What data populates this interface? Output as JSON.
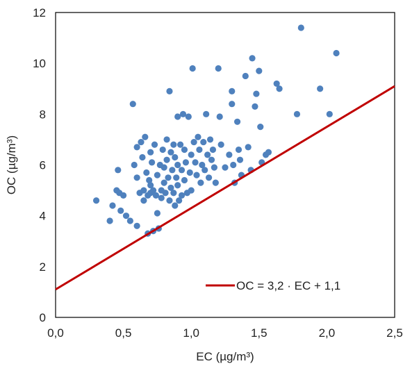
{
  "chart_data": {
    "type": "scatter",
    "xlabel": "EC (µg/m³)",
    "ylabel": "OC (µg/m³)",
    "xlim": [
      0,
      2.5
    ],
    "ylim": [
      0,
      12
    ],
    "x_ticks": [
      "0,0",
      "0,5",
      "1,0",
      "1,5",
      "2,0",
      "2,5"
    ],
    "y_ticks": [
      "0",
      "2",
      "4",
      "6",
      "8",
      "10",
      "12"
    ],
    "grid": false,
    "legend_position": "bottom-right",
    "point_color": "#4f81bd",
    "line_color": "#c00000",
    "line": {
      "label": "OC = 3,2 · EC + 1,1",
      "slope": 3.2,
      "intercept": 1.1
    },
    "points": [
      [
        0.3,
        4.6
      ],
      [
        0.4,
        3.8
      ],
      [
        0.42,
        4.4
      ],
      [
        0.45,
        5.0
      ],
      [
        0.47,
        4.9
      ],
      [
        0.46,
        5.8
      ],
      [
        0.48,
        4.2
      ],
      [
        0.5,
        4.8
      ],
      [
        0.52,
        4.0
      ],
      [
        0.55,
        3.8
      ],
      [
        0.57,
        8.4
      ],
      [
        0.58,
        6.0
      ],
      [
        0.6,
        6.7
      ],
      [
        0.6,
        5.5
      ],
      [
        0.6,
        3.6
      ],
      [
        0.62,
        4.9
      ],
      [
        0.63,
        6.9
      ],
      [
        0.64,
        6.3
      ],
      [
        0.65,
        5.0
      ],
      [
        0.65,
        4.6
      ],
      [
        0.66,
        7.1
      ],
      [
        0.67,
        5.7
      ],
      [
        0.68,
        4.8
      ],
      [
        0.68,
        3.3
      ],
      [
        0.69,
        5.4
      ],
      [
        0.7,
        6.5
      ],
      [
        0.7,
        5.2
      ],
      [
        0.7,
        4.9
      ],
      [
        0.71,
        6.1
      ],
      [
        0.72,
        5.0
      ],
      [
        0.72,
        3.4
      ],
      [
        0.73,
        6.8
      ],
      [
        0.74,
        4.8
      ],
      [
        0.75,
        5.6
      ],
      [
        0.75,
        4.1
      ],
      [
        0.76,
        3.5
      ],
      [
        0.77,
        6.0
      ],
      [
        0.78,
        5.0
      ],
      [
        0.78,
        4.7
      ],
      [
        0.79,
        6.6
      ],
      [
        0.8,
        5.9
      ],
      [
        0.8,
        5.3
      ],
      [
        0.81,
        4.9
      ],
      [
        0.82,
        7.0
      ],
      [
        0.82,
        6.2
      ],
      [
        0.83,
        5.5
      ],
      [
        0.84,
        4.6
      ],
      [
        0.84,
        8.9
      ],
      [
        0.85,
        6.5
      ],
      [
        0.85,
        5.1
      ],
      [
        0.86,
        5.8
      ],
      [
        0.87,
        4.9
      ],
      [
        0.87,
        6.8
      ],
      [
        0.88,
        6.3
      ],
      [
        0.88,
        4.4
      ],
      [
        0.89,
        5.5
      ],
      [
        0.9,
        7.9
      ],
      [
        0.9,
        6.0
      ],
      [
        0.9,
        5.2
      ],
      [
        0.91,
        4.6
      ],
      [
        0.92,
        6.8
      ],
      [
        0.93,
        5.8
      ],
      [
        0.93,
        4.8
      ],
      [
        0.94,
        8.0
      ],
      [
        0.95,
        6.6
      ],
      [
        0.95,
        5.4
      ],
      [
        0.96,
        6.1
      ],
      [
        0.97,
        4.9
      ],
      [
        0.98,
        7.9
      ],
      [
        0.99,
        5.7
      ],
      [
        1.0,
        6.4
      ],
      [
        1.0,
        5.0
      ],
      [
        1.01,
        9.8
      ],
      [
        1.02,
        6.9
      ],
      [
        1.03,
        6.1
      ],
      [
        1.04,
        5.6
      ],
      [
        1.05,
        7.1
      ],
      [
        1.06,
        6.6
      ],
      [
        1.07,
        5.3
      ],
      [
        1.08,
        6.0
      ],
      [
        1.09,
        6.9
      ],
      [
        1.1,
        5.8
      ],
      [
        1.11,
        8.0
      ],
      [
        1.12,
        6.4
      ],
      [
        1.13,
        5.5
      ],
      [
        1.14,
        7.0
      ],
      [
        1.15,
        6.2
      ],
      [
        1.16,
        6.6
      ],
      [
        1.17,
        5.9
      ],
      [
        1.18,
        5.3
      ],
      [
        1.2,
        9.8
      ],
      [
        1.21,
        7.9
      ],
      [
        1.22,
        6.8
      ],
      [
        1.25,
        5.9
      ],
      [
        1.28,
        6.4
      ],
      [
        1.3,
        8.9
      ],
      [
        1.3,
        8.4
      ],
      [
        1.31,
        6.0
      ],
      [
        1.32,
        5.3
      ],
      [
        1.34,
        7.7
      ],
      [
        1.35,
        6.6
      ],
      [
        1.36,
        6.2
      ],
      [
        1.37,
        5.6
      ],
      [
        1.4,
        9.5
      ],
      [
        1.42,
        6.7
      ],
      [
        1.44,
        5.8
      ],
      [
        1.45,
        10.2
      ],
      [
        1.47,
        8.3
      ],
      [
        1.48,
        8.8
      ],
      [
        1.5,
        9.7
      ],
      [
        1.51,
        7.5
      ],
      [
        1.52,
        6.1
      ],
      [
        1.55,
        6.4
      ],
      [
        1.57,
        6.5
      ],
      [
        1.63,
        9.2
      ],
      [
        1.65,
        9.0
      ],
      [
        1.78,
        8.0
      ],
      [
        1.81,
        11.4
      ],
      [
        1.95,
        9.0
      ],
      [
        2.02,
        8.0
      ],
      [
        2.07,
        10.4
      ]
    ]
  }
}
